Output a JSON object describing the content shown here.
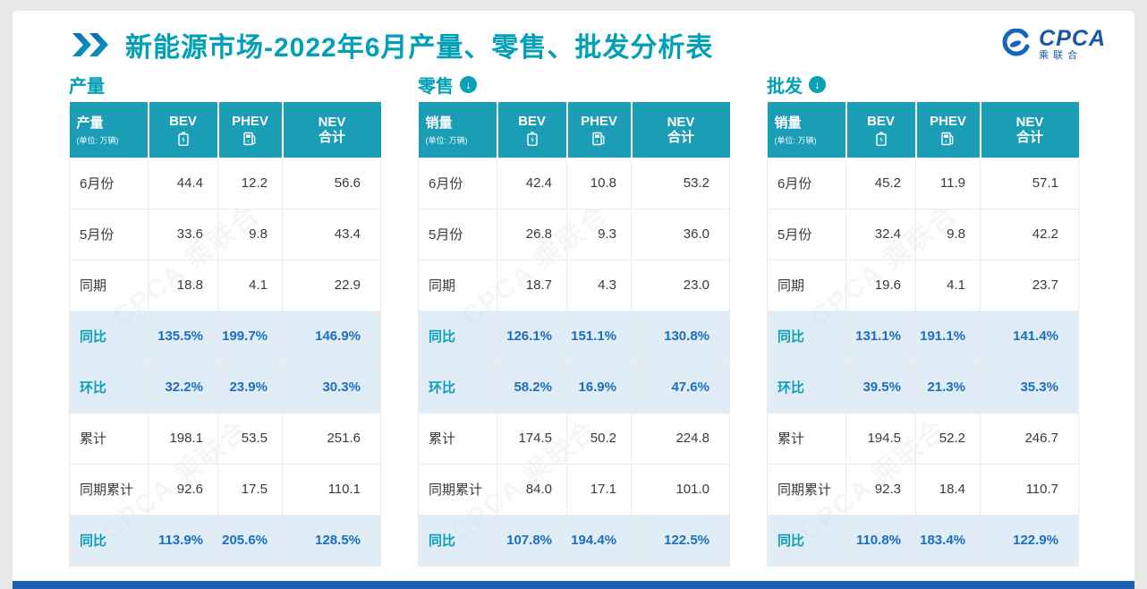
{
  "page": {
    "title_highlight": "新能源市场",
    "title_rest": "-2022年6月产量、零售、批发分析表",
    "watermark": "CPCA 乘联合",
    "accent_teal": "#00a0b6",
    "header_teal": "#1a9db5",
    "percent_blue": "#1b6ec2",
    "percent_row_bg": "#d8e7f4",
    "bottom_bar_blue": "#1e5eb8",
    "logo": {
      "name": "CPCA",
      "subtitle": "乘联合"
    }
  },
  "chart_data": [
    {
      "type": "table",
      "id": "production",
      "title": "产量",
      "has_down_arrow": false,
      "corner_label": "产量",
      "corner_unit": "(单位: 万辆)",
      "columns": [
        {
          "label": "BEV",
          "icon": "battery-icon"
        },
        {
          "label": "PHEV",
          "icon": "charger-icon"
        },
        {
          "label": "NEV",
          "label2": "合计",
          "icon": ""
        }
      ],
      "rows": [
        {
          "label": "6月份",
          "values": [
            "44.4",
            "12.2",
            "56.6"
          ],
          "percent": false
        },
        {
          "label": "5月份",
          "values": [
            "33.6",
            "9.8",
            "43.4"
          ],
          "percent": false
        },
        {
          "label": "同期",
          "values": [
            "18.8",
            "4.1",
            "22.9"
          ],
          "percent": false
        },
        {
          "label": "同比",
          "values": [
            "135.5%",
            "199.7%",
            "146.9%"
          ],
          "percent": true
        },
        {
          "label": "环比",
          "values": [
            "32.2%",
            "23.9%",
            "30.3%"
          ],
          "percent": true
        },
        {
          "label": "累计",
          "values": [
            "198.1",
            "53.5",
            "251.6"
          ],
          "percent": false
        },
        {
          "label": "同期累计",
          "values": [
            "92.6",
            "17.5",
            "110.1"
          ],
          "percent": false
        },
        {
          "label": "同比",
          "values": [
            "113.9%",
            "205.6%",
            "128.5%"
          ],
          "percent": true
        }
      ]
    },
    {
      "type": "table",
      "id": "retail",
      "title": "零售",
      "has_down_arrow": true,
      "corner_label": "销量",
      "corner_unit": "(单位: 万辆)",
      "columns": [
        {
          "label": "BEV",
          "icon": "battery-icon"
        },
        {
          "label": "PHEV",
          "icon": "charger-icon"
        },
        {
          "label": "NEV",
          "label2": "合计",
          "icon": ""
        }
      ],
      "rows": [
        {
          "label": "6月份",
          "values": [
            "42.4",
            "10.8",
            "53.2"
          ],
          "percent": false
        },
        {
          "label": "5月份",
          "values": [
            "26.8",
            "9.3",
            "36.0"
          ],
          "percent": false
        },
        {
          "label": "同期",
          "values": [
            "18.7",
            "4.3",
            "23.0"
          ],
          "percent": false
        },
        {
          "label": "同比",
          "values": [
            "126.1%",
            "151.1%",
            "130.8%"
          ],
          "percent": true
        },
        {
          "label": "环比",
          "values": [
            "58.2%",
            "16.9%",
            "47.6%"
          ],
          "percent": true
        },
        {
          "label": "累计",
          "values": [
            "174.5",
            "50.2",
            "224.8"
          ],
          "percent": false
        },
        {
          "label": "同期累计",
          "values": [
            "84.0",
            "17.1",
            "101.0"
          ],
          "percent": false
        },
        {
          "label": "同比",
          "values": [
            "107.8%",
            "194.4%",
            "122.5%"
          ],
          "percent": true
        }
      ]
    },
    {
      "type": "table",
      "id": "wholesale",
      "title": "批发",
      "has_down_arrow": true,
      "corner_label": "销量",
      "corner_unit": "(单位: 万辆)",
      "columns": [
        {
          "label": "BEV",
          "icon": "battery-icon"
        },
        {
          "label": "PHEV",
          "icon": "charger-icon"
        },
        {
          "label": "NEV",
          "label2": "合计",
          "icon": ""
        }
      ],
      "rows": [
        {
          "label": "6月份",
          "values": [
            "45.2",
            "11.9",
            "57.1"
          ],
          "percent": false
        },
        {
          "label": "5月份",
          "values": [
            "32.4",
            "9.8",
            "42.2"
          ],
          "percent": false
        },
        {
          "label": "同期",
          "values": [
            "19.6",
            "4.1",
            "23.7"
          ],
          "percent": false
        },
        {
          "label": "同比",
          "values": [
            "131.1%",
            "191.1%",
            "141.4%"
          ],
          "percent": true
        },
        {
          "label": "环比",
          "values": [
            "39.5%",
            "21.3%",
            "35.3%"
          ],
          "percent": true
        },
        {
          "label": "累计",
          "values": [
            "194.5",
            "52.2",
            "246.7"
          ],
          "percent": false
        },
        {
          "label": "同期累计",
          "values": [
            "92.3",
            "18.4",
            "110.7"
          ],
          "percent": false
        },
        {
          "label": "同比",
          "values": [
            "110.8%",
            "183.4%",
            "122.9%"
          ],
          "percent": true
        }
      ]
    }
  ]
}
